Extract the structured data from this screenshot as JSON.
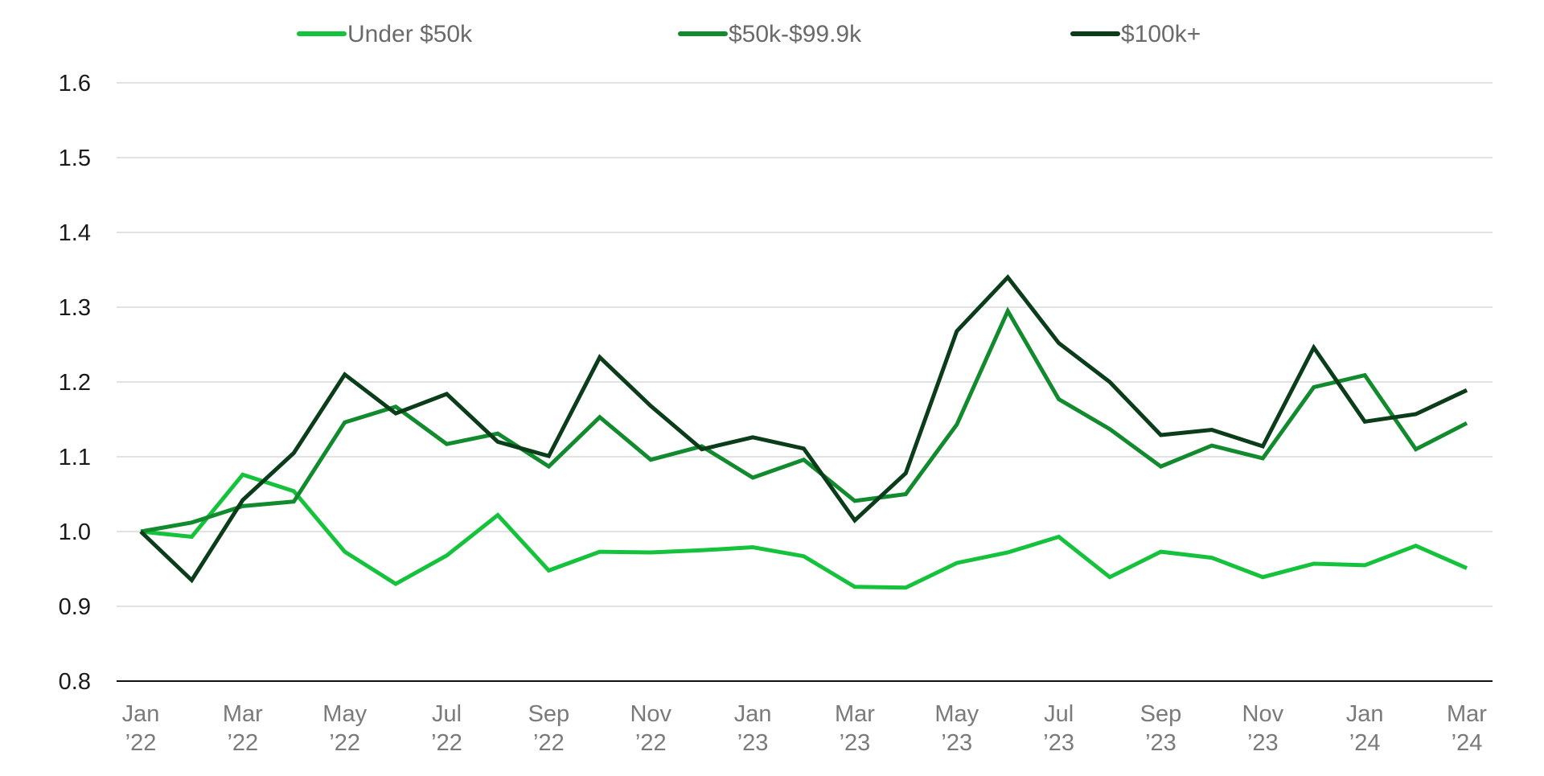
{
  "chart_data": {
    "type": "line",
    "title": "",
    "xlabel": "",
    "ylabel": "",
    "ylim": [
      0.8,
      1.6
    ],
    "yticks": [
      "0.8",
      "0.9",
      "1.0",
      "1.1",
      "1.2",
      "1.3",
      "1.4",
      "1.5",
      "1.6"
    ],
    "grid": true,
    "legend_position": "top",
    "x": [
      "Jan 2022",
      "Feb 2022",
      "Mar 2022",
      "Apr 2022",
      "May 2022",
      "Jun 2022",
      "Jul 2022",
      "Aug 2022",
      "Sep 2022",
      "Oct 2022",
      "Nov 2022",
      "Dec 2022",
      "Jan 2023",
      "Feb 2023",
      "Mar 2023",
      "Apr 2023",
      "May 2023",
      "Jun 2023",
      "Jul 2023",
      "Aug 2023",
      "Sep 2023",
      "Oct 2023",
      "Nov 2023",
      "Dec 2023",
      "Jan 2024",
      "Feb 2024",
      "Mar 2024"
    ],
    "xticks": [
      {
        "index": 0,
        "month": "Jan",
        "year": "’22"
      },
      {
        "index": 2,
        "month": "Mar",
        "year": "’22"
      },
      {
        "index": 4,
        "month": "May",
        "year": "’22"
      },
      {
        "index": 6,
        "month": "Jul",
        "year": "’22"
      },
      {
        "index": 8,
        "month": "Sep",
        "year": "’22"
      },
      {
        "index": 10,
        "month": "Nov",
        "year": "’22"
      },
      {
        "index": 12,
        "month": "Jan",
        "year": "’23"
      },
      {
        "index": 14,
        "month": "Mar",
        "year": "’23"
      },
      {
        "index": 16,
        "month": "May",
        "year": "’23"
      },
      {
        "index": 18,
        "month": "Jul",
        "year": "’23"
      },
      {
        "index": 20,
        "month": "Sep",
        "year": "’23"
      },
      {
        "index": 22,
        "month": "Nov",
        "year": "’23"
      },
      {
        "index": 24,
        "month": "Jan",
        "year": "’24"
      },
      {
        "index": 26,
        "month": "Mar",
        "year": "’24"
      }
    ],
    "series": [
      {
        "name": "Under $50k",
        "color": "#15c23c",
        "values": [
          1.0,
          0.993,
          1.076,
          1.054,
          0.973,
          0.93,
          0.968,
          1.022,
          0.948,
          0.973,
          0.972,
          0.975,
          0.979,
          0.967,
          0.926,
          0.925,
          0.958,
          0.972,
          0.993,
          0.939,
          0.973,
          0.965,
          0.939,
          0.957,
          0.955,
          0.981,
          0.951
        ]
      },
      {
        "name": "$50k-$99.9k",
        "color": "#128a2e",
        "values": [
          1.0,
          1.012,
          1.034,
          1.04,
          1.146,
          1.167,
          1.117,
          1.131,
          1.087,
          1.153,
          1.096,
          1.114,
          1.072,
          1.096,
          1.041,
          1.05,
          1.143,
          1.295,
          1.177,
          1.137,
          1.087,
          1.115,
          1.098,
          1.193,
          1.209,
          1.11,
          1.145
        ]
      },
      {
        "name": "$100k+",
        "color": "#0b3d1a",
        "values": [
          1.0,
          0.935,
          1.042,
          1.105,
          1.21,
          1.158,
          1.184,
          1.12,
          1.101,
          1.233,
          1.168,
          1.11,
          1.126,
          1.111,
          1.015,
          1.078,
          1.268,
          1.34,
          1.252,
          1.2,
          1.129,
          1.136,
          1.114,
          1.246,
          1.147,
          1.157,
          1.189
        ]
      }
    ]
  }
}
